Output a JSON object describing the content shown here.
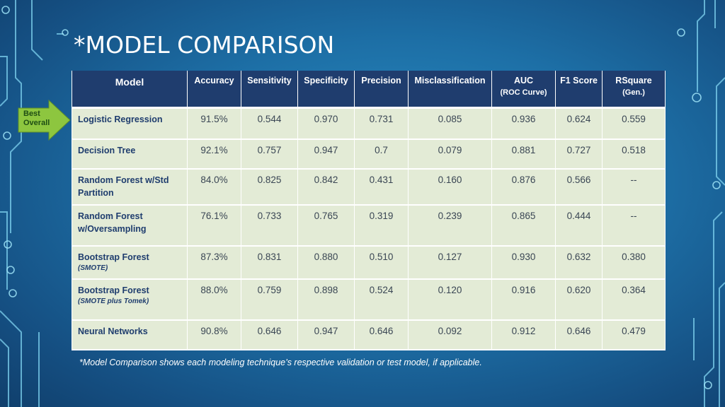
{
  "title": "*MODEL COMPARISON",
  "badge": {
    "line1": "Best",
    "line2": "Overall"
  },
  "table": {
    "headers": {
      "model": "Model",
      "accuracy": "Accuracy",
      "sensitivity": "Sensitivity",
      "specificity": "Specificity",
      "precision": "Precision",
      "misclassification": "Misclassification",
      "auc": "AUC",
      "auc_sub": "(ROC Curve)",
      "f1": "F1 Score",
      "rsquare": "RSquare",
      "rsquare_sub": "(Gen.)"
    },
    "rows": [
      {
        "model": "Logistic Regression",
        "note": "",
        "accuracy": "91.5%",
        "sensitivity": "0.544",
        "specificity": "0.970",
        "precision": "0.731",
        "misclassification": "0.085",
        "auc": "0.936",
        "f1": "0.624",
        "rsquare": "0.559"
      },
      {
        "model": "Decision Tree",
        "note": "",
        "accuracy": "92.1%",
        "sensitivity": "0.757",
        "specificity": "0.947",
        "precision": "0.7",
        "misclassification": "0.079",
        "auc": "0.881",
        "f1": "0.727",
        "rsquare": "0.518"
      },
      {
        "model": "Random Forest w/Std Partition",
        "note": "",
        "accuracy": "84.0%",
        "sensitivity": "0.825",
        "specificity": "0.842",
        "precision": "0.431",
        "misclassification": "0.160",
        "auc": "0.876",
        "f1": "0.566",
        "rsquare": "--"
      },
      {
        "model": "Random Forest w/Oversampling",
        "note": "",
        "accuracy": "76.1%",
        "sensitivity": "0.733",
        "specificity": "0.765",
        "precision": "0.319",
        "misclassification": "0.239",
        "auc": "0.865",
        "f1": "0.444",
        "rsquare": "--"
      },
      {
        "model": "Bootstrap Forest",
        "note": "(SMOTE)",
        "accuracy": "87.3%",
        "sensitivity": "0.831",
        "specificity": "0.880",
        "precision": "0.510",
        "misclassification": "0.127",
        "auc": "0.930",
        "f1": "0.632",
        "rsquare": "0.380"
      },
      {
        "model": "Bootstrap Forest",
        "note": "(SMOTE plus Tomek)",
        "accuracy": "88.0%",
        "sensitivity": "0.759",
        "specificity": "0.898",
        "precision": "0.524",
        "misclassification": "0.120",
        "auc": "0.916",
        "f1": "0.620",
        "rsquare": "0.364"
      },
      {
        "model": "Neural Networks",
        "note": "",
        "accuracy": "90.8%",
        "sensitivity": "0.646",
        "specificity": "0.947",
        "precision": "0.646",
        "misclassification": "0.092",
        "auc": "0.912",
        "f1": "0.646",
        "rsquare": "0.479"
      }
    ]
  },
  "footnote": "*Model Comparison shows each modeling technique’s respective validation or test model, if applicable.",
  "colors": {
    "header_bg": "#1f3d6e",
    "row_bg": "#e3ebd6",
    "badge_green": "#8dc63f",
    "circuit": "#7fd3f0"
  }
}
